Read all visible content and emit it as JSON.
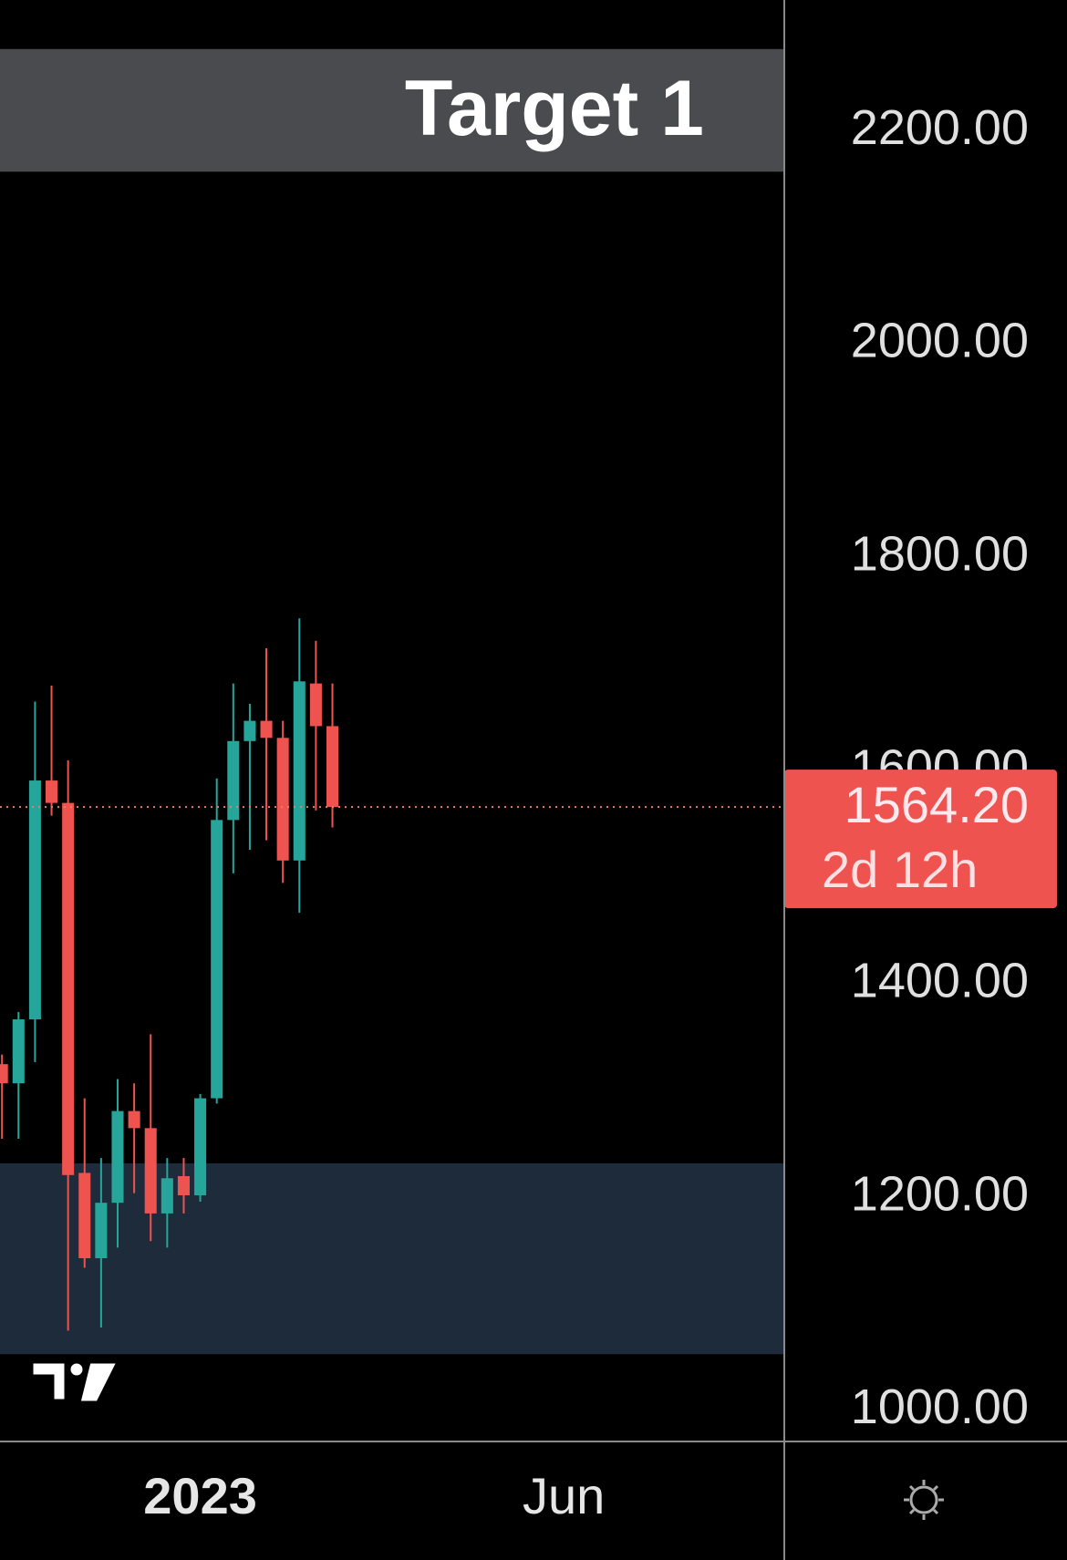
{
  "chart_data": {
    "type": "candlestick",
    "x": [
      0,
      1,
      2,
      3,
      4,
      5,
      6,
      7,
      8,
      9,
      10,
      11,
      12,
      13,
      14,
      15,
      16,
      17,
      18,
      19,
      20
    ],
    "open": [
      1323,
      1305,
      1365,
      1589,
      1568,
      1221,
      1141,
      1193,
      1279,
      1263,
      1183,
      1218,
      1200,
      1291,
      1552,
      1626,
      1645,
      1629,
      1514,
      1680,
      1640
    ],
    "high": [
      1332,
      1372,
      1663,
      1678,
      1608,
      1291,
      1235,
      1309,
      1305,
      1351,
      1235,
      1235,
      1295,
      1591,
      1680,
      1661,
      1713,
      1645,
      1741,
      1720,
      1680
    ],
    "low": [
      1253,
      1253,
      1325,
      1556,
      1073,
      1132,
      1076,
      1151,
      1202,
      1157,
      1151,
      1183,
      1194,
      1286,
      1502,
      1524,
      1533,
      1493,
      1465,
      1561,
      1545
    ],
    "close": [
      1305,
      1365,
      1589,
      1568,
      1219,
      1141,
      1193,
      1279,
      1263,
      1183,
      1216,
      1200,
      1291,
      1552,
      1626,
      1645,
      1629,
      1514,
      1682,
      1640,
      1564.2
    ],
    "up_color": "#26a69a",
    "down_color": "#ef5350",
    "xlim": [
      -0.12,
      47.35
    ],
    "xticks": [
      {
        "value": 12,
        "label": "2023"
      },
      {
        "value": 34,
        "label": "Jun"
      }
    ],
    "ylim": [
      970,
      2321
    ],
    "yticks": [
      {
        "value": 1000,
        "label": "1000.00"
      },
      {
        "value": 1200,
        "label": "1200.00"
      },
      {
        "value": 1400,
        "label": "1400.00"
      },
      {
        "value": 1600,
        "label": "1600.00"
      },
      {
        "value": 1800,
        "label": "1800.00"
      },
      {
        "value": 2000,
        "label": "2000.00"
      },
      {
        "value": 2200,
        "label": "2200.00"
      }
    ],
    "last_price": {
      "value": 1564.2,
      "label": "1564.20"
    },
    "countdown": "2d 12h",
    "target": {
      "text": "Target 1",
      "top": 2275,
      "bottom": 2160
    },
    "zone": {
      "top": 1230,
      "bottom": 1051
    }
  }
}
